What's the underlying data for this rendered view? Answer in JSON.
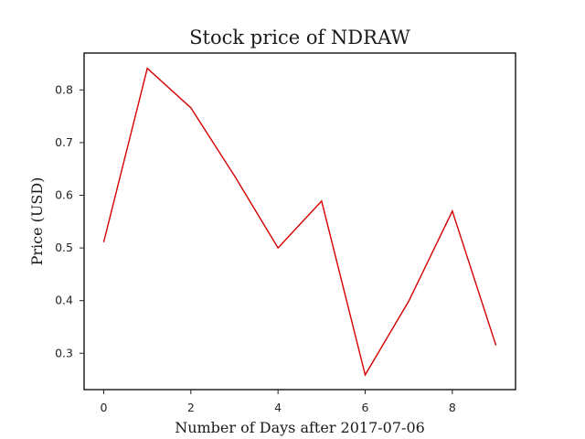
{
  "chart_data": {
    "type": "line",
    "title": "Stock price of NDRAW",
    "xlabel": "Number of Days after 2017-07-06",
    "ylabel": "Price (USD)",
    "x": [
      0,
      1,
      2,
      3,
      4,
      5,
      6,
      7,
      8,
      9
    ],
    "series": [
      {
        "values": [
          0.511,
          0.841,
          0.766,
          0.637,
          0.5,
          0.589,
          0.259,
          0.399,
          0.57,
          0.315
        ],
        "color": "#d40000"
      }
    ],
    "xlim": [
      -0.45,
      9.45
    ],
    "ylim": [
      0.231,
      0.87
    ],
    "xticks": [
      0,
      2,
      4,
      6,
      8
    ],
    "yticks": [
      0.3,
      0.4,
      0.5,
      0.6,
      0.7,
      0.8
    ],
    "xtick_labels": [
      "0",
      "2",
      "4",
      "6",
      "8"
    ],
    "ytick_labels": [
      "0.3",
      "0.4",
      "0.5",
      "0.6",
      "0.7",
      "0.8"
    ],
    "grid": false,
    "legend": "none"
  }
}
